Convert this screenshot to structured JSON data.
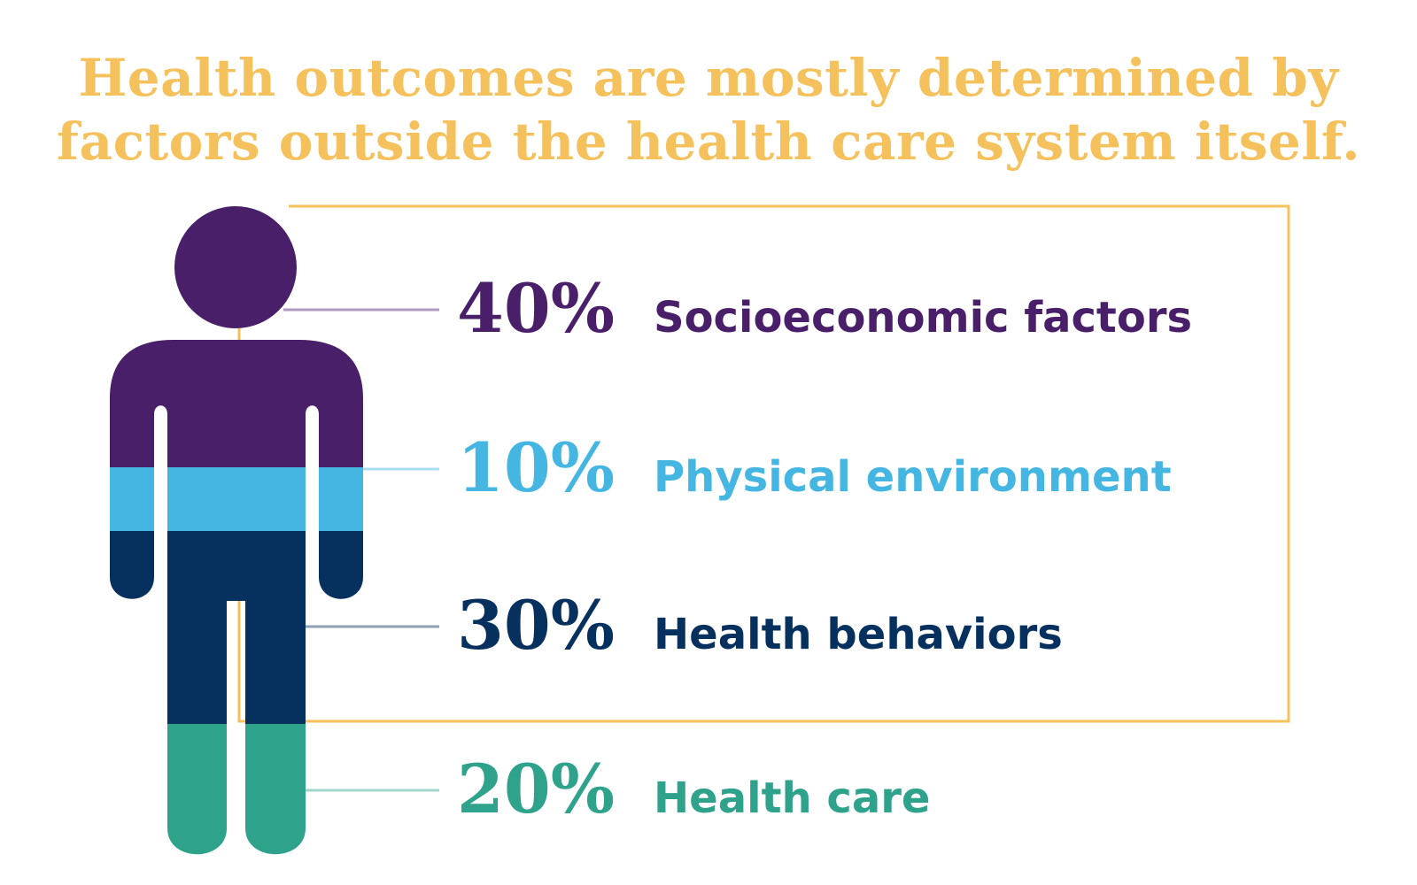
{
  "title": {
    "line1": "Health outcomes are mostly determined by",
    "line2": "factors outside the health care system itself."
  },
  "colors": {
    "title": "#f5c15c",
    "frame": "#f5c15c",
    "socioeconomic": "#4a1f6a",
    "physical": "#45b6e2",
    "behaviors": "#06305e",
    "care": "#2fa28c"
  },
  "chart_data": {
    "type": "pictograph",
    "unit": "%",
    "categories": [
      "Socioeconomic factors",
      "Physical environment",
      "Health behaviors",
      "Health care"
    ],
    "values": [
      40,
      10,
      30,
      20
    ],
    "value_labels": [
      "40%",
      "10%",
      "30%",
      "20%"
    ],
    "series_colors": [
      "#4a1f6a",
      "#45b6e2",
      "#06305e",
      "#2fa28c"
    ]
  }
}
